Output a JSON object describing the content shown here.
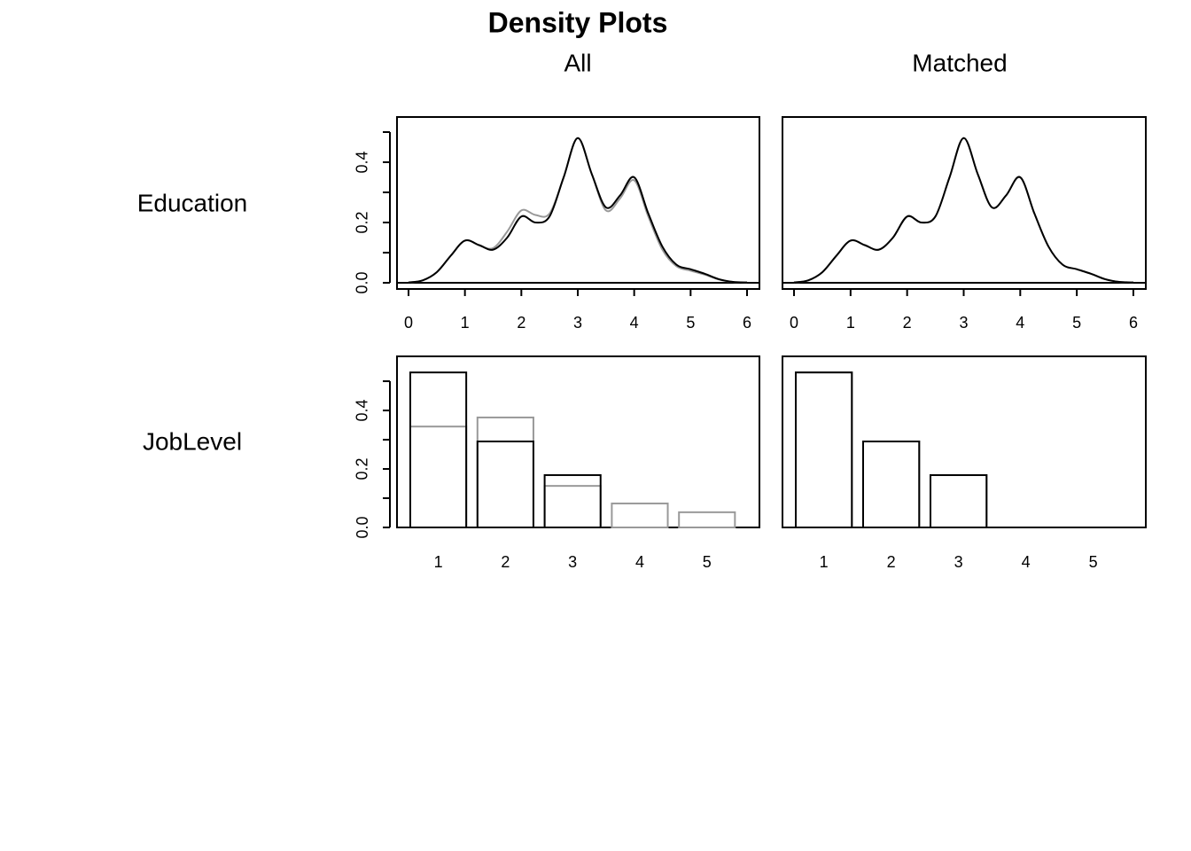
{
  "title": "Density Plots",
  "columns": [
    "All",
    "Matched"
  ],
  "rows": [
    "Education",
    "JobLevel"
  ],
  "chart_data": [
    {
      "type": "line",
      "x": [
        0,
        0.25,
        0.5,
        0.75,
        1,
        1.25,
        1.5,
        1.75,
        2,
        2.25,
        2.5,
        2.75,
        3,
        3.25,
        3.5,
        3.75,
        4,
        4.25,
        4.5,
        4.75,
        5,
        5.25,
        5.5,
        5.75,
        6
      ],
      "series": [
        {
          "color": "#999999",
          "values": [
            0.001,
            0.008,
            0.035,
            0.09,
            0.14,
            0.125,
            0.115,
            0.17,
            0.24,
            0.225,
            0.23,
            0.35,
            0.48,
            0.36,
            0.24,
            0.28,
            0.34,
            0.22,
            0.11,
            0.055,
            0.04,
            0.027,
            0.011,
            0.003,
            0.001
          ]
        },
        {
          "color": "#000000",
          "values": [
            0.001,
            0.008,
            0.035,
            0.09,
            0.14,
            0.125,
            0.11,
            0.15,
            0.22,
            0.2,
            0.22,
            0.35,
            0.48,
            0.36,
            0.25,
            0.29,
            0.35,
            0.23,
            0.12,
            0.06,
            0.045,
            0.03,
            0.012,
            0.003,
            0.001
          ]
        }
      ],
      "xlim": [
        -0.204,
        6.22
      ],
      "ylim": [
        -0.0206,
        0.55
      ],
      "xticks": [
        0,
        1,
        2,
        3,
        4,
        5,
        6
      ],
      "yticks": [
        {
          "value": 0,
          "label": "0.0"
        },
        {
          "value": 0.2,
          "label": "0.2"
        },
        {
          "value": 0.4,
          "label": "0.4"
        }
      ],
      "yminorticks": [
        0.1,
        0.3,
        0.5
      ]
    },
    {
      "type": "line",
      "x": [
        0,
        0.25,
        0.5,
        0.75,
        1,
        1.25,
        1.5,
        1.75,
        2,
        2.25,
        2.5,
        2.75,
        3,
        3.25,
        3.5,
        3.75,
        4,
        4.25,
        4.5,
        4.75,
        5,
        5.25,
        5.5,
        5.75,
        6
      ],
      "series": [
        {
          "color": "#999999",
          "values": [
            0.001,
            0.008,
            0.035,
            0.09,
            0.14,
            0.125,
            0.11,
            0.15,
            0.22,
            0.2,
            0.22,
            0.35,
            0.48,
            0.36,
            0.25,
            0.29,
            0.35,
            0.23,
            0.12,
            0.06,
            0.045,
            0.03,
            0.012,
            0.003,
            0.001
          ]
        },
        {
          "color": "#000000",
          "values": [
            0.001,
            0.008,
            0.035,
            0.09,
            0.14,
            0.125,
            0.11,
            0.15,
            0.22,
            0.2,
            0.22,
            0.35,
            0.48,
            0.36,
            0.25,
            0.29,
            0.35,
            0.23,
            0.12,
            0.06,
            0.045,
            0.03,
            0.012,
            0.003,
            0.001
          ]
        }
      ],
      "xlim": [
        -0.204,
        6.22
      ],
      "ylim": [
        -0.0206,
        0.55
      ],
      "xticks": [
        0,
        1,
        2,
        3,
        4,
        5,
        6
      ]
    },
    {
      "type": "bar",
      "categories": [
        "1",
        "2",
        "3",
        "4",
        "5"
      ],
      "series": [
        {
          "color": "#999999",
          "values": [
            0.345,
            0.376,
            0.142,
            0.082,
            0.052
          ]
        },
        {
          "color": "#000000",
          "values": [
            0.53,
            0.294,
            0.179,
            0,
            0
          ]
        }
      ],
      "ylim": [
        0,
        0.585
      ],
      "yticks": [
        {
          "value": 0,
          "label": "0.0"
        },
        {
          "value": 0.2,
          "label": "0.2"
        },
        {
          "value": 0.4,
          "label": "0.4"
        }
      ],
      "yminorticks": [
        0.1,
        0.3,
        0.5
      ]
    },
    {
      "type": "bar",
      "categories": [
        "1",
        "2",
        "3",
        "4",
        "5"
      ],
      "series": [
        {
          "color": "#999999",
          "values": [
            0.53,
            0.294,
            0.179,
            0,
            0
          ]
        },
        {
          "color": "#000000",
          "values": [
            0.53,
            0.294,
            0.179,
            0,
            0
          ]
        }
      ],
      "ylim": [
        0,
        0.585
      ]
    }
  ]
}
